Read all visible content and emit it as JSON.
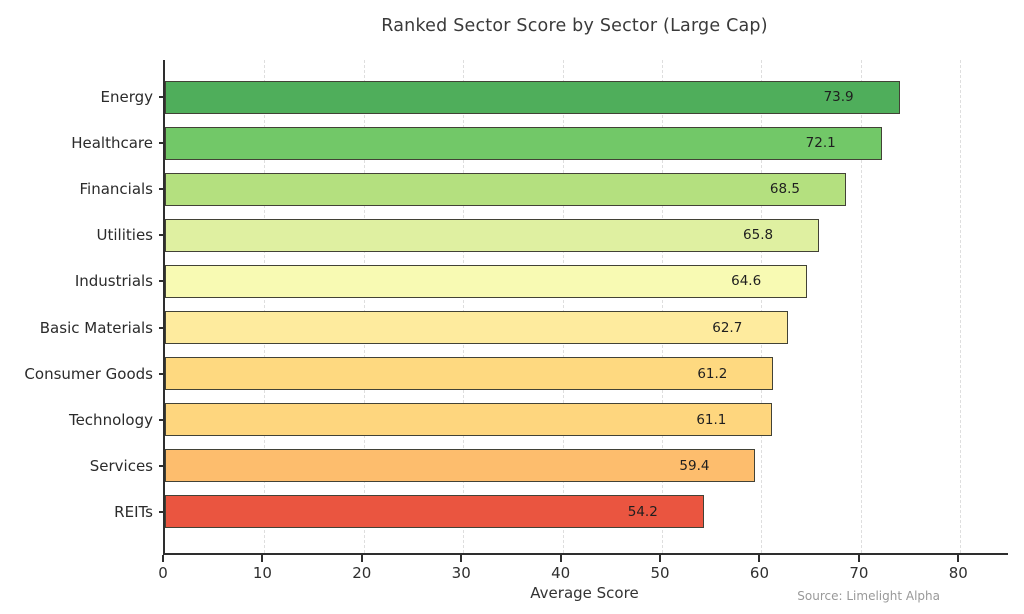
{
  "chart_data": {
    "type": "bar",
    "orientation": "horizontal",
    "title": "Ranked Sector Score by Sector (Large Cap)",
    "xlabel": "Average Score",
    "source": "Source: Limelight Alpha",
    "categories": [
      "Energy",
      "Healthcare",
      "Financials",
      "Utilities",
      "Industrials",
      "Basic Materials",
      "Consumer Goods",
      "Technology",
      "Services",
      "REITs"
    ],
    "values": [
      73.9,
      72.1,
      68.5,
      65.8,
      64.6,
      62.7,
      61.2,
      61.1,
      59.4,
      54.2
    ],
    "value_labels": [
      "73.9",
      "72.1",
      "68.5",
      "65.8",
      "64.6",
      "62.7",
      "61.2",
      "61.1",
      "59.4",
      "54.2"
    ],
    "bar_colors": [
      "#4fae5b",
      "#72c868",
      "#b4e07f",
      "#dff0a1",
      "#f8fab3",
      "#feeb9e",
      "#fed980",
      "#fed67e",
      "#fdbd6d",
      "#ea5540"
    ],
    "bar_border_color": "#424236",
    "xlim": [
      0,
      84.8
    ],
    "xticks": [
      0,
      10,
      20,
      30,
      40,
      50,
      60,
      70,
      80
    ],
    "grid": "vertical-dashed",
    "legend": null,
    "background_color": "#ffffff"
  }
}
